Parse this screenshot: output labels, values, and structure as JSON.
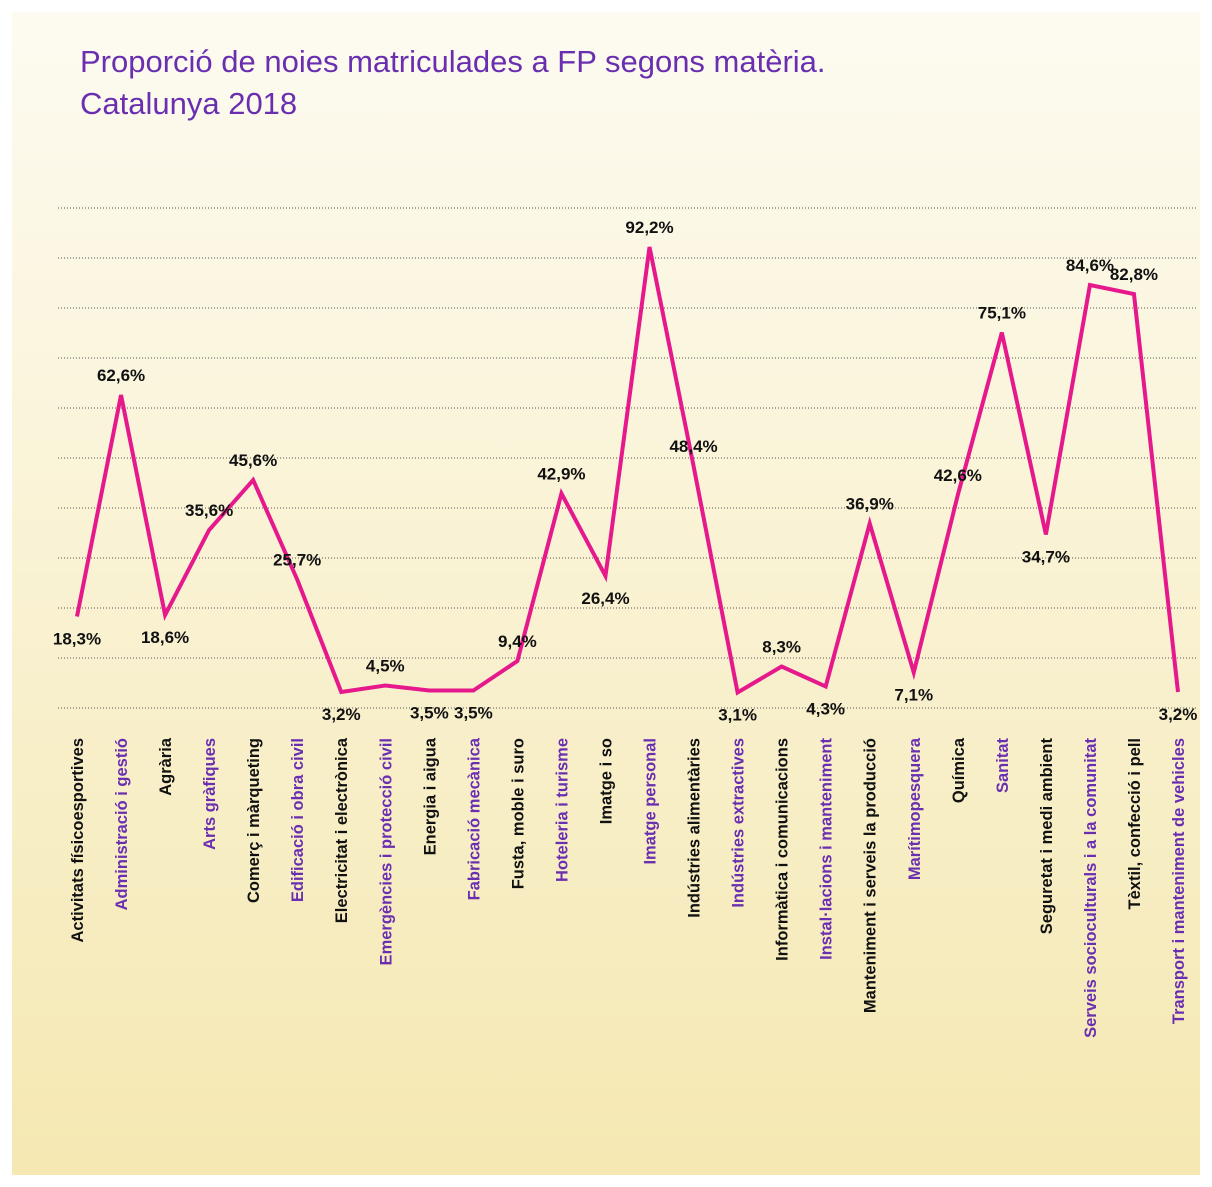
{
  "chart_data": {
    "type": "line",
    "title": [
      "Proporció de noies matriculades a FP segons matèria.",
      "Catalunya 2018"
    ],
    "categories": [
      "Activitats físicoesportives",
      "Administració i gestió",
      "Agrària",
      "Arts gràfiques",
      "Comerç i màrqueting",
      "Edificació i obra civil",
      "Electricitat i electrònica",
      "Emergències i protecció civil",
      "Energia i aigua",
      "Fabricació mecànica",
      "Fusta, moble i suro",
      "Hoteleria i turisme",
      "Imatge i so",
      "Imatge personal",
      "Indústries alimentàries",
      "Indústries extractives",
      "Informàtica i comunicacions",
      "Instal·lacions i manteniment",
      "Manteniment i serveis  la producció",
      "Marítimopesquera",
      "Química",
      "Sanitat",
      "Seguretat i medi ambient",
      "Serveis socioculturals i a la comunitat",
      "Tèxtil, confecció i pell",
      "Transport i manteniment de vehicles"
    ],
    "values": [
      18.3,
      62.6,
      18.6,
      35.6,
      45.6,
      25.7,
      3.2,
      4.5,
      3.5,
      3.5,
      9.4,
      42.9,
      26.4,
      92.2,
      48.4,
      3.1,
      8.3,
      4.3,
      36.9,
      7.1,
      42.6,
      75.1,
      34.7,
      84.6,
      82.8,
      3.2
    ],
    "value_labels": [
      "18,3%",
      "62,6%",
      "18,6%",
      "35,6%",
      "45,6%",
      "25,7%",
      "3,2%",
      "4,5%",
      "3,5%",
      "3,5%",
      "9,4%",
      "42,9%",
      "26,4%",
      "92,2%",
      "48,4%",
      "3,1%",
      "8,3%",
      "4,3%",
      "36,9%",
      "7,1%",
      "42,6%",
      "75,1%",
      "34,7%",
      "84,6%",
      "82,8%",
      "3,2%"
    ],
    "category_label_colors": [
      "#111111",
      "#6a2fb0",
      "#111111",
      "#6a2fb0",
      "#111111",
      "#6a2fb0",
      "#111111",
      "#6a2fb0",
      "#111111",
      "#6a2fb0",
      "#111111",
      "#6a2fb0",
      "#111111",
      "#6a2fb0",
      "#111111",
      "#6a2fb0",
      "#111111",
      "#6a2fb0",
      "#111111",
      "#6a2fb0",
      "#111111",
      "#6a2fb0",
      "#111111",
      "#6a2fb0",
      "#111111",
      "#6a2fb0"
    ],
    "color": "#e6198c",
    "title_color": "#6a2fb0",
    "ylim": [
      0,
      100
    ],
    "yticks": [
      0,
      10,
      20,
      30,
      40,
      50,
      60,
      70,
      80,
      90,
      100
    ],
    "grid": true
  }
}
